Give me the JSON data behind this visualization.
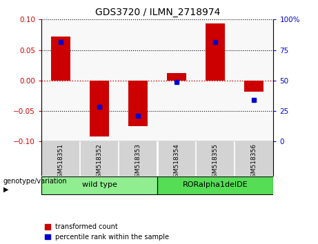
{
  "title": "GDS3720 / ILMN_2718974",
  "categories": [
    "GSM518351",
    "GSM518352",
    "GSM518353",
    "GSM518354",
    "GSM518355",
    "GSM518356"
  ],
  "red_bars": [
    0.072,
    -0.092,
    -0.075,
    0.012,
    0.094,
    -0.018
  ],
  "blue_dots_left": [
    0.063,
    -0.043,
    -0.058,
    -0.002,
    0.063,
    -0.032
  ],
  "ylim_left": [
    -0.1,
    0.1
  ],
  "ylim_right": [
    0,
    100
  ],
  "yticks_left": [
    -0.1,
    -0.05,
    0,
    0.05,
    0.1
  ],
  "yticks_right": [
    0,
    25,
    50,
    75,
    100
  ],
  "groups": [
    {
      "label": "wild type",
      "start": 0,
      "end": 2,
      "color": "#90ee90"
    },
    {
      "label": "RORalpha1delDE",
      "start": 3,
      "end": 5,
      "color": "#4cdd4c"
    }
  ],
  "group_label": "genotype/variation",
  "bar_color": "#cc0000",
  "dot_color": "#0000cc",
  "legend_red_label": "transformed count",
  "legend_blue_label": "percentile rank within the sample",
  "title_fontsize": 10,
  "ax_bg_color": "#ffffff",
  "plot_area_bg": "#f8f8f8",
  "label_bg_color": "#d3d3d3",
  "hline_color": "#cc0000",
  "dotted_color": "black",
  "bar_width": 0.5
}
